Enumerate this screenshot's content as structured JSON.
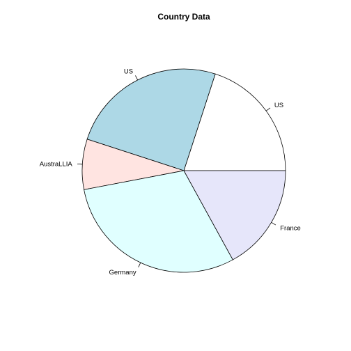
{
  "chart_data": {
    "type": "pie",
    "title": "Country Data",
    "start_direction": "counterclockwise from 3 o'clock",
    "slices": [
      {
        "label": "US",
        "value": 20,
        "color": "#ffffff"
      },
      {
        "label": "US",
        "value": 25,
        "color": "#add8e6"
      },
      {
        "label": "AustraLLIA",
        "value": 8,
        "color": "#ffe4e1"
      },
      {
        "label": "Germany",
        "value": 30,
        "color": "#e0ffff"
      },
      {
        "label": "France",
        "value": 17,
        "color": "#e6e6fa"
      }
    ]
  }
}
